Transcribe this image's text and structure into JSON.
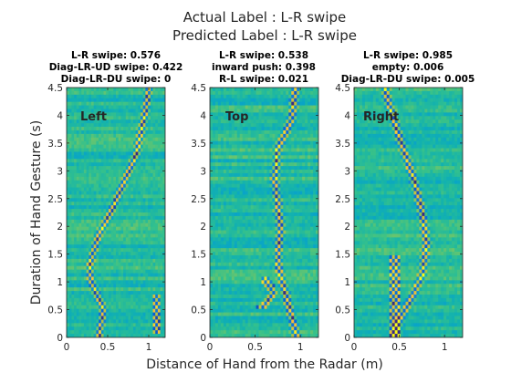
{
  "figure": {
    "suptitle_line1": "Actual Label : L-R swipe",
    "suptitle_line2": "Predicted Label : L-R swipe",
    "xlabel": "Distance of Hand from the Radar (m)",
    "ylabel": "Duration of Hand Gesture (s)"
  },
  "chart_data": [
    {
      "type": "heatmap",
      "title_lines": [
        "L-R swipe: 0.576",
        "Diag-LR-UD swipe: 0.422",
        "Diag-LR-DU swipe: 0"
      ],
      "annotation": "Left",
      "annotation_color": "#ff1a1a",
      "xlim": [
        0,
        1.2
      ],
      "ylim": [
        0,
        4.5
      ],
      "x_ticks": [
        0,
        0.5,
        1
      ],
      "x_tick_labels": [
        "0",
        "0.5",
        "1"
      ],
      "y_ticks": [
        0,
        0.5,
        1,
        1.5,
        2,
        2.5,
        3,
        3.5,
        4,
        4.5
      ],
      "y_tick_labels": [
        "0",
        "0.5",
        "1",
        "1.5",
        "2",
        "2.5",
        "3",
        "3.5",
        "4",
        "4.5"
      ],
      "colormap": "parula",
      "trace": [
        [
          0.4,
          0.1
        ],
        [
          0.45,
          0.5
        ],
        [
          0.3,
          1.0
        ],
        [
          0.28,
          1.3
        ],
        [
          0.38,
          1.8
        ],
        [
          0.55,
          2.3
        ],
        [
          0.7,
          2.8
        ],
        [
          0.85,
          3.3
        ],
        [
          0.95,
          4.0
        ],
        [
          1.0,
          4.5
        ]
      ],
      "tail": [
        [
          0.75,
          0.75
        ],
        [
          0.95,
          0.5
        ],
        [
          1.05,
          0.25
        ],
        [
          1.1,
          0.05
        ]
      ]
    },
    {
      "type": "heatmap",
      "title_lines": [
        "L-R swipe: 0.538",
        "inward push: 0.398",
        "R-L swipe: 0.021"
      ],
      "annotation": "Top",
      "annotation_color": "#ff1a1a",
      "xlim": [
        0,
        1.2
      ],
      "ylim": [
        0,
        4.5
      ],
      "x_ticks": [
        0,
        0.5,
        1
      ],
      "x_tick_labels": [
        "0",
        "0.5",
        "1"
      ],
      "y_ticks": [
        0,
        0.5,
        1,
        1.5,
        2,
        2.5,
        3,
        3.5,
        4,
        4.5
      ],
      "y_tick_labels": [
        "0",
        "0.5",
        "1",
        "1.5",
        "2",
        "2.5",
        "3",
        "3.5",
        "4",
        "4.5"
      ],
      "colormap": "parula",
      "trace": [
        [
          0.95,
          0.1
        ],
        [
          0.85,
          0.7
        ],
        [
          0.75,
          1.3
        ],
        [
          0.78,
          2.0
        ],
        [
          0.72,
          2.8
        ],
        [
          0.75,
          3.4
        ],
        [
          0.9,
          3.9
        ],
        [
          0.95,
          4.5
        ]
      ],
      "tail": [
        [
          0.55,
          0.5
        ],
        [
          0.7,
          0.8
        ],
        [
          0.6,
          1.1
        ]
      ]
    },
    {
      "type": "heatmap",
      "title_lines": [
        "L-R swipe: 0.985",
        "empty: 0.006",
        "Diag-LR-DU swipe: 0.005"
      ],
      "annotation": "Right",
      "annotation_color": "#ff1a1a",
      "xlim": [
        0,
        1.2
      ],
      "ylim": [
        0,
        4.5
      ],
      "x_ticks": [
        0,
        0.5,
        1
      ],
      "x_tick_labels": [
        "0",
        "0.5",
        "1"
      ],
      "y_ticks": [
        0,
        0.5,
        1,
        1.5,
        2,
        2.5,
        3,
        3.5,
        4,
        4.5
      ],
      "y_tick_labels": [
        "0",
        "0.5",
        "1",
        "1.5",
        "2",
        "2.5",
        "3",
        "3.5",
        "4",
        "4.5"
      ],
      "colormap": "parula",
      "trace": [
        [
          0.35,
          4.4
        ],
        [
          0.5,
          3.6
        ],
        [
          0.65,
          2.9
        ],
        [
          0.75,
          2.3
        ],
        [
          0.8,
          1.7
        ],
        [
          0.75,
          1.1
        ],
        [
          0.6,
          0.6
        ],
        [
          0.5,
          0.3
        ],
        [
          0.45,
          0.0
        ]
      ],
      "tail": [
        [
          0.45,
          0.0
        ],
        [
          0.45,
          1.5
        ]
      ]
    }
  ]
}
